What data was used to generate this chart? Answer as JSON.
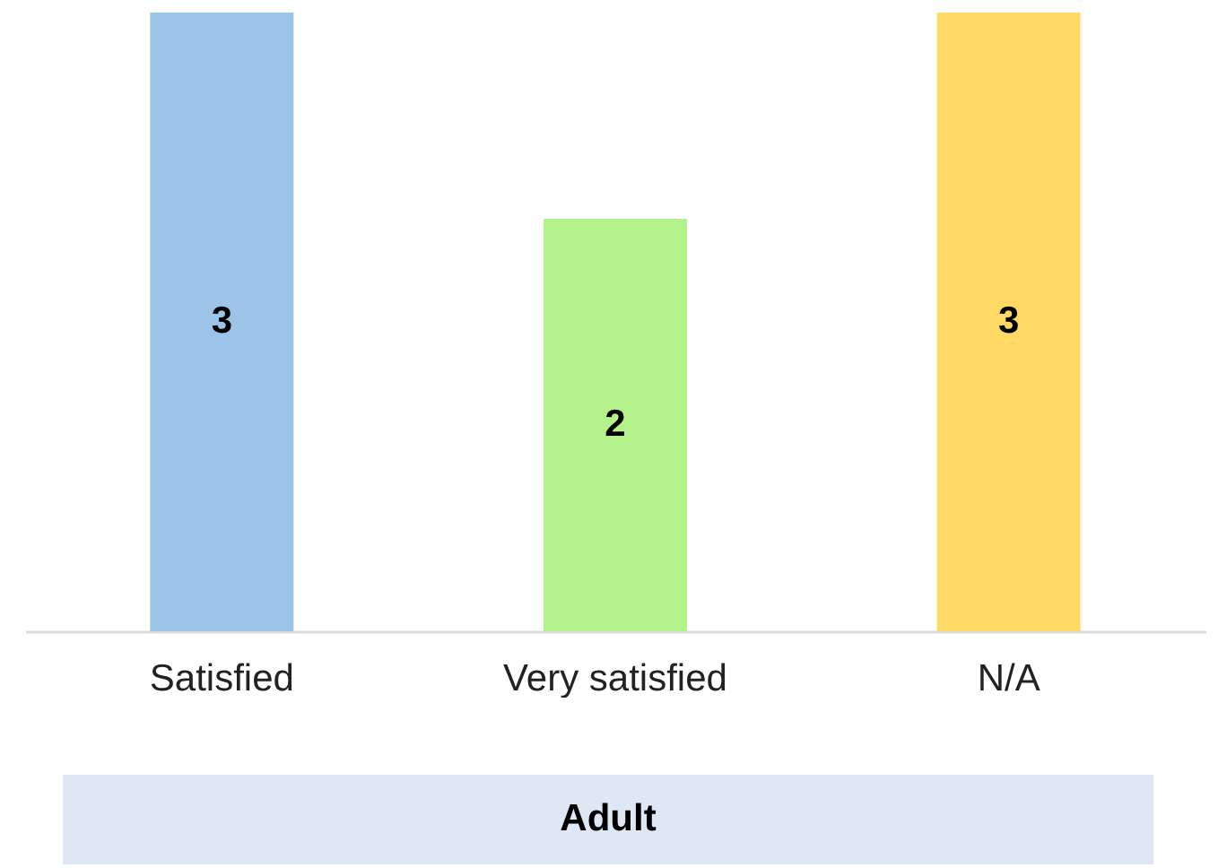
{
  "chart_data": {
    "type": "bar",
    "xlabel": "Adult",
    "categories": [
      "Satisfied",
      "Very satisfied",
      "N/A"
    ],
    "values": [
      3,
      2,
      3
    ],
    "colors": [
      "#9dc3e6",
      "#b4f38c",
      "#ffd966"
    ],
    "data_labels": true
  }
}
